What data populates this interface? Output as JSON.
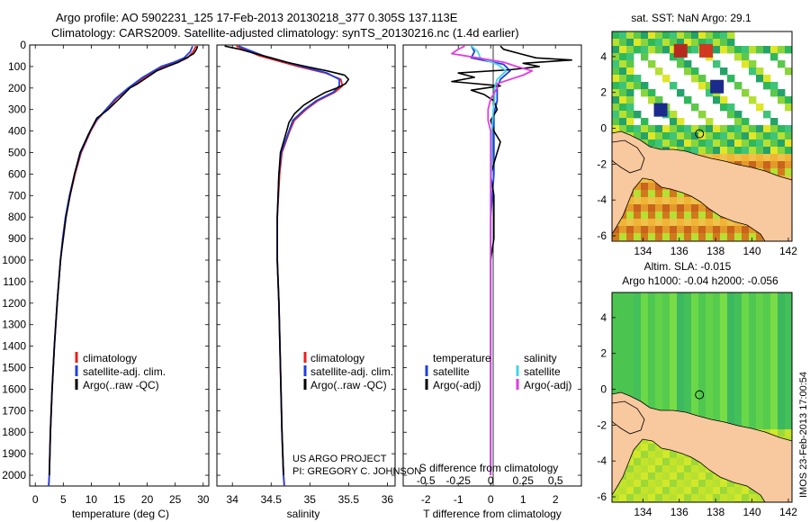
{
  "header": {
    "line1": "Argo profile: AO 5902231_125 17-Feb-2013 20130218_377 0.305S 137.113E",
    "line2": "Climatology: CARS2009. Satellite-adjusted climatology: synTS_20130216.nc (1.4d earlier)"
  },
  "credits": {
    "project": "US ARGO PROJECT",
    "pi": "PI: GREGORY C. JOHNSON",
    "stamp": "IMOS 23-Feb-2013 17:00:54"
  },
  "colors": {
    "climatology": "#e8201b",
    "satellite": "#1f3fe0",
    "argo": "#000000",
    "salinity_satellite": "#45d4e6",
    "salinity_argo": "#e23ce0",
    "land": "#f8c89f",
    "map_cloud": "#ffffff"
  },
  "chart_data": [
    {
      "type": "line",
      "panel": "temperature",
      "xlabel": "temperature (deg C)",
      "ylabel": "",
      "xlim": [
        -1,
        31
      ],
      "ylim": [
        2050,
        0
      ],
      "xticks": [
        0,
        5,
        10,
        15,
        20,
        25,
        30
      ],
      "yticks": [
        0,
        100,
        200,
        300,
        400,
        500,
        600,
        700,
        800,
        900,
        1000,
        1100,
        1200,
        1300,
        1400,
        1500,
        1600,
        1700,
        1800,
        1900,
        2000
      ],
      "legend": [
        "climatology",
        "satellite-adj. clim.",
        "Argo(..raw -QC)"
      ],
      "series": [
        {
          "name": "climatology",
          "color_key": "climatology",
          "depth": [
            5,
            30,
            60,
            80,
            100,
            150,
            200,
            250,
            300,
            350,
            400,
            500,
            600,
            700,
            800,
            900,
            1000,
            1200,
            1400,
            1600,
            1800,
            2000,
            2050
          ],
          "values": [
            28.7,
            28.2,
            27.2,
            25.5,
            23.0,
            19.5,
            16.8,
            14.5,
            12.7,
            11.0,
            9.9,
            8.2,
            7.1,
            6.2,
            5.4,
            4.9,
            4.5,
            3.9,
            3.4,
            3.0,
            2.7,
            2.5,
            2.4
          ]
        },
        {
          "name": "satellite-adj. clim.",
          "color_key": "satellite",
          "depth": [
            5,
            30,
            60,
            80,
            100,
            150,
            200,
            250,
            300,
            350,
            400,
            500,
            600,
            700,
            800,
            900,
            1000,
            1200,
            1400,
            1600,
            1800,
            2000,
            2050
          ],
          "values": [
            28.1,
            27.7,
            26.6,
            24.8,
            22.5,
            19.2,
            16.6,
            14.3,
            12.6,
            10.9,
            9.8,
            8.1,
            7.0,
            6.1,
            5.4,
            4.9,
            4.5,
            3.9,
            3.4,
            3.0,
            2.7,
            2.5,
            2.4
          ]
        },
        {
          "name": "Argo(..raw -QC)",
          "color_key": "argo",
          "depth": [
            5,
            20,
            40,
            60,
            80,
            100,
            120,
            150,
            180,
            200,
            250,
            300,
            340,
            380,
            420,
            500,
            600,
            700,
            800,
            900,
            1000,
            1200,
            1400,
            1600,
            1800,
            2000
          ],
          "values": [
            29.0,
            28.8,
            28.3,
            27.0,
            25.6,
            23.6,
            21.7,
            20.0,
            18.3,
            16.9,
            15.0,
            13.0,
            11.0,
            10.2,
            9.4,
            8.0,
            7.0,
            6.2,
            5.5,
            5.0,
            4.5,
            3.9,
            3.4,
            3.0,
            2.7,
            2.5
          ]
        }
      ]
    },
    {
      "type": "line",
      "panel": "salinity",
      "xlabel": "salinity",
      "ylabel": "",
      "xlim": [
        33.8,
        36.1
      ],
      "ylim": [
        2050,
        0
      ],
      "xticks": [
        34,
        34.5,
        35,
        35.5,
        36
      ],
      "legend": [
        "climatology",
        "satellite-adj. clim.",
        "Argo(..raw -QC)"
      ],
      "series": [
        {
          "name": "climatology",
          "color_key": "climatology",
          "depth": [
            5,
            50,
            100,
            130,
            160,
            190,
            220,
            260,
            300,
            350,
            400,
            500,
            600,
            800,
            1000,
            1200,
            1500,
            1800,
            2000,
            2050
          ],
          "values": [
            34.05,
            34.35,
            34.85,
            35.2,
            35.4,
            35.42,
            35.32,
            35.1,
            34.95,
            34.8,
            34.74,
            34.64,
            34.61,
            34.58,
            34.58,
            34.6,
            34.62,
            34.64,
            34.66,
            34.67
          ]
        },
        {
          "name": "satellite-adj. clim.",
          "color_key": "satellite",
          "depth": [
            5,
            50,
            100,
            130,
            160,
            190,
            220,
            260,
            300,
            350,
            400,
            500,
            600,
            800,
            1000,
            1200,
            1500,
            1800,
            2000,
            2050
          ],
          "values": [
            34.08,
            34.4,
            34.9,
            35.22,
            35.38,
            35.38,
            35.3,
            35.08,
            34.93,
            34.78,
            34.73,
            34.63,
            34.6,
            34.58,
            34.58,
            34.6,
            34.62,
            34.64,
            34.66,
            34.67
          ]
        },
        {
          "name": "Argo(..raw -QC)",
          "color_key": "argo",
          "depth": [
            5,
            20,
            40,
            60,
            80,
            100,
            120,
            140,
            160,
            180,
            200,
            220,
            250,
            280,
            320,
            360,
            400,
            500,
            600,
            800,
            1000,
            1200,
            1500,
            1800,
            2000
          ],
          "values": [
            33.9,
            34.1,
            34.3,
            34.5,
            34.7,
            34.95,
            35.22,
            35.45,
            35.5,
            35.46,
            35.35,
            35.2,
            35.05,
            34.92,
            34.8,
            34.73,
            34.7,
            34.62,
            34.6,
            34.58,
            34.58,
            34.6,
            34.62,
            34.64,
            34.66
          ]
        }
      ]
    },
    {
      "type": "line",
      "panel": "difference",
      "xlabel": "T difference from climatology",
      "xlabel_top": "S difference from climatology",
      "ylabel": "",
      "xlim": [
        -2.7,
        2.8
      ],
      "ylim": [
        2050,
        0
      ],
      "xticks": [
        -2,
        -1,
        0,
        1,
        2
      ],
      "xticks_salinity": [
        -0.5,
        -0.25,
        0,
        0.25,
        0.5
      ],
      "legend_temperature_title": "temperature",
      "legend_salinity_title": "salinity",
      "legend": [
        "satellite",
        "Argo(-adj)",
        "satellite",
        "Argo(-adj)"
      ],
      "series": [
        {
          "name": "satellite",
          "group": "temperature",
          "color_key": "satellite",
          "depth": [
            5,
            30,
            60,
            90,
            120,
            160,
            200,
            260,
            320,
            400,
            500,
            600,
            800,
            1000,
            1400,
            2000
          ],
          "values": [
            -0.6,
            -0.5,
            -0.6,
            0.4,
            0.6,
            0.3,
            0.2,
            0.2,
            0.1,
            0.1,
            0.1,
            0.1,
            0.0,
            0.0,
            0.0,
            0.0
          ]
        },
        {
          "name": "Argo(-adj)",
          "group": "temperature",
          "color_key": "argo",
          "depth": [
            5,
            20,
            40,
            60,
            70,
            85,
            100,
            115,
            130,
            150,
            170,
            190,
            210,
            230,
            260,
            300,
            350,
            400,
            450,
            500,
            600,
            700,
            800,
            900,
            1000,
            1200,
            1400,
            2000
          ],
          "values": [
            0.3,
            0.4,
            0.9,
            1.4,
            2.5,
            1.0,
            1.5,
            0.6,
            -1.0,
            -0.5,
            -1.2,
            0.3,
            -0.6,
            -0.2,
            0.1,
            0.2,
            0.0,
            0.1,
            0.3,
            0.2,
            0.0,
            0.1,
            0.1,
            0.1,
            0.0,
            0.0,
            0.0,
            0.0
          ]
        },
        {
          "name": "satellite",
          "group": "salinity",
          "color_key": "salinity_satellite",
          "depth": [
            5,
            30,
            60,
            90,
            120,
            160,
            200,
            250,
            300,
            400,
            500,
            700,
            1000,
            1400,
            2000
          ],
          "values": [
            -0.15,
            -0.1,
            -0.08,
            0.05,
            0.12,
            0.05,
            0.03,
            0.03,
            0.02,
            0.01,
            0.01,
            0.0,
            0.0,
            0.0,
            0.0
          ]
        },
        {
          "name": "Argo(-adj)",
          "group": "salinity",
          "color_key": "salinity_argo",
          "depth": [
            5,
            20,
            40,
            60,
            80,
            100,
            120,
            140,
            160,
            180,
            200,
            250,
            300,
            350,
            400,
            500,
            700,
            1000,
            1400,
            2000
          ],
          "values": [
            -0.2,
            -0.25,
            -0.3,
            -0.1,
            0.1,
            0.2,
            0.32,
            0.25,
            0.15,
            0.05,
            0.05,
            0.0,
            -0.02,
            -0.02,
            0.0,
            0.0,
            0.0,
            0.0,
            0.0,
            0.0
          ]
        }
      ]
    },
    {
      "type": "heatmap",
      "panel": "sst-map",
      "title": "sat. SST: NaN Argo: 29.1",
      "xlim": [
        132.3,
        142.2
      ],
      "ylim": [
        -6.3,
        5.4
      ],
      "xticks": [
        134,
        136,
        138,
        140,
        142
      ],
      "yticks": [
        -6,
        -4,
        -2,
        0,
        2,
        4
      ],
      "float_position": {
        "lon": 137.113,
        "lat": -0.305
      }
    },
    {
      "type": "heatmap",
      "panel": "sla-map",
      "title": "Altim. SLA: -0.015",
      "subtitle": "Argo h1000: -0.04 h2000: -0.056",
      "xlim": [
        132.3,
        142.2
      ],
      "ylim": [
        -6.3,
        5.4
      ],
      "xticks": [
        134,
        136,
        138,
        140,
        142
      ],
      "yticks": [
        -6,
        -4,
        -2,
        0,
        2,
        4
      ],
      "float_position": {
        "lon": 137.113,
        "lat": -0.305
      }
    }
  ]
}
